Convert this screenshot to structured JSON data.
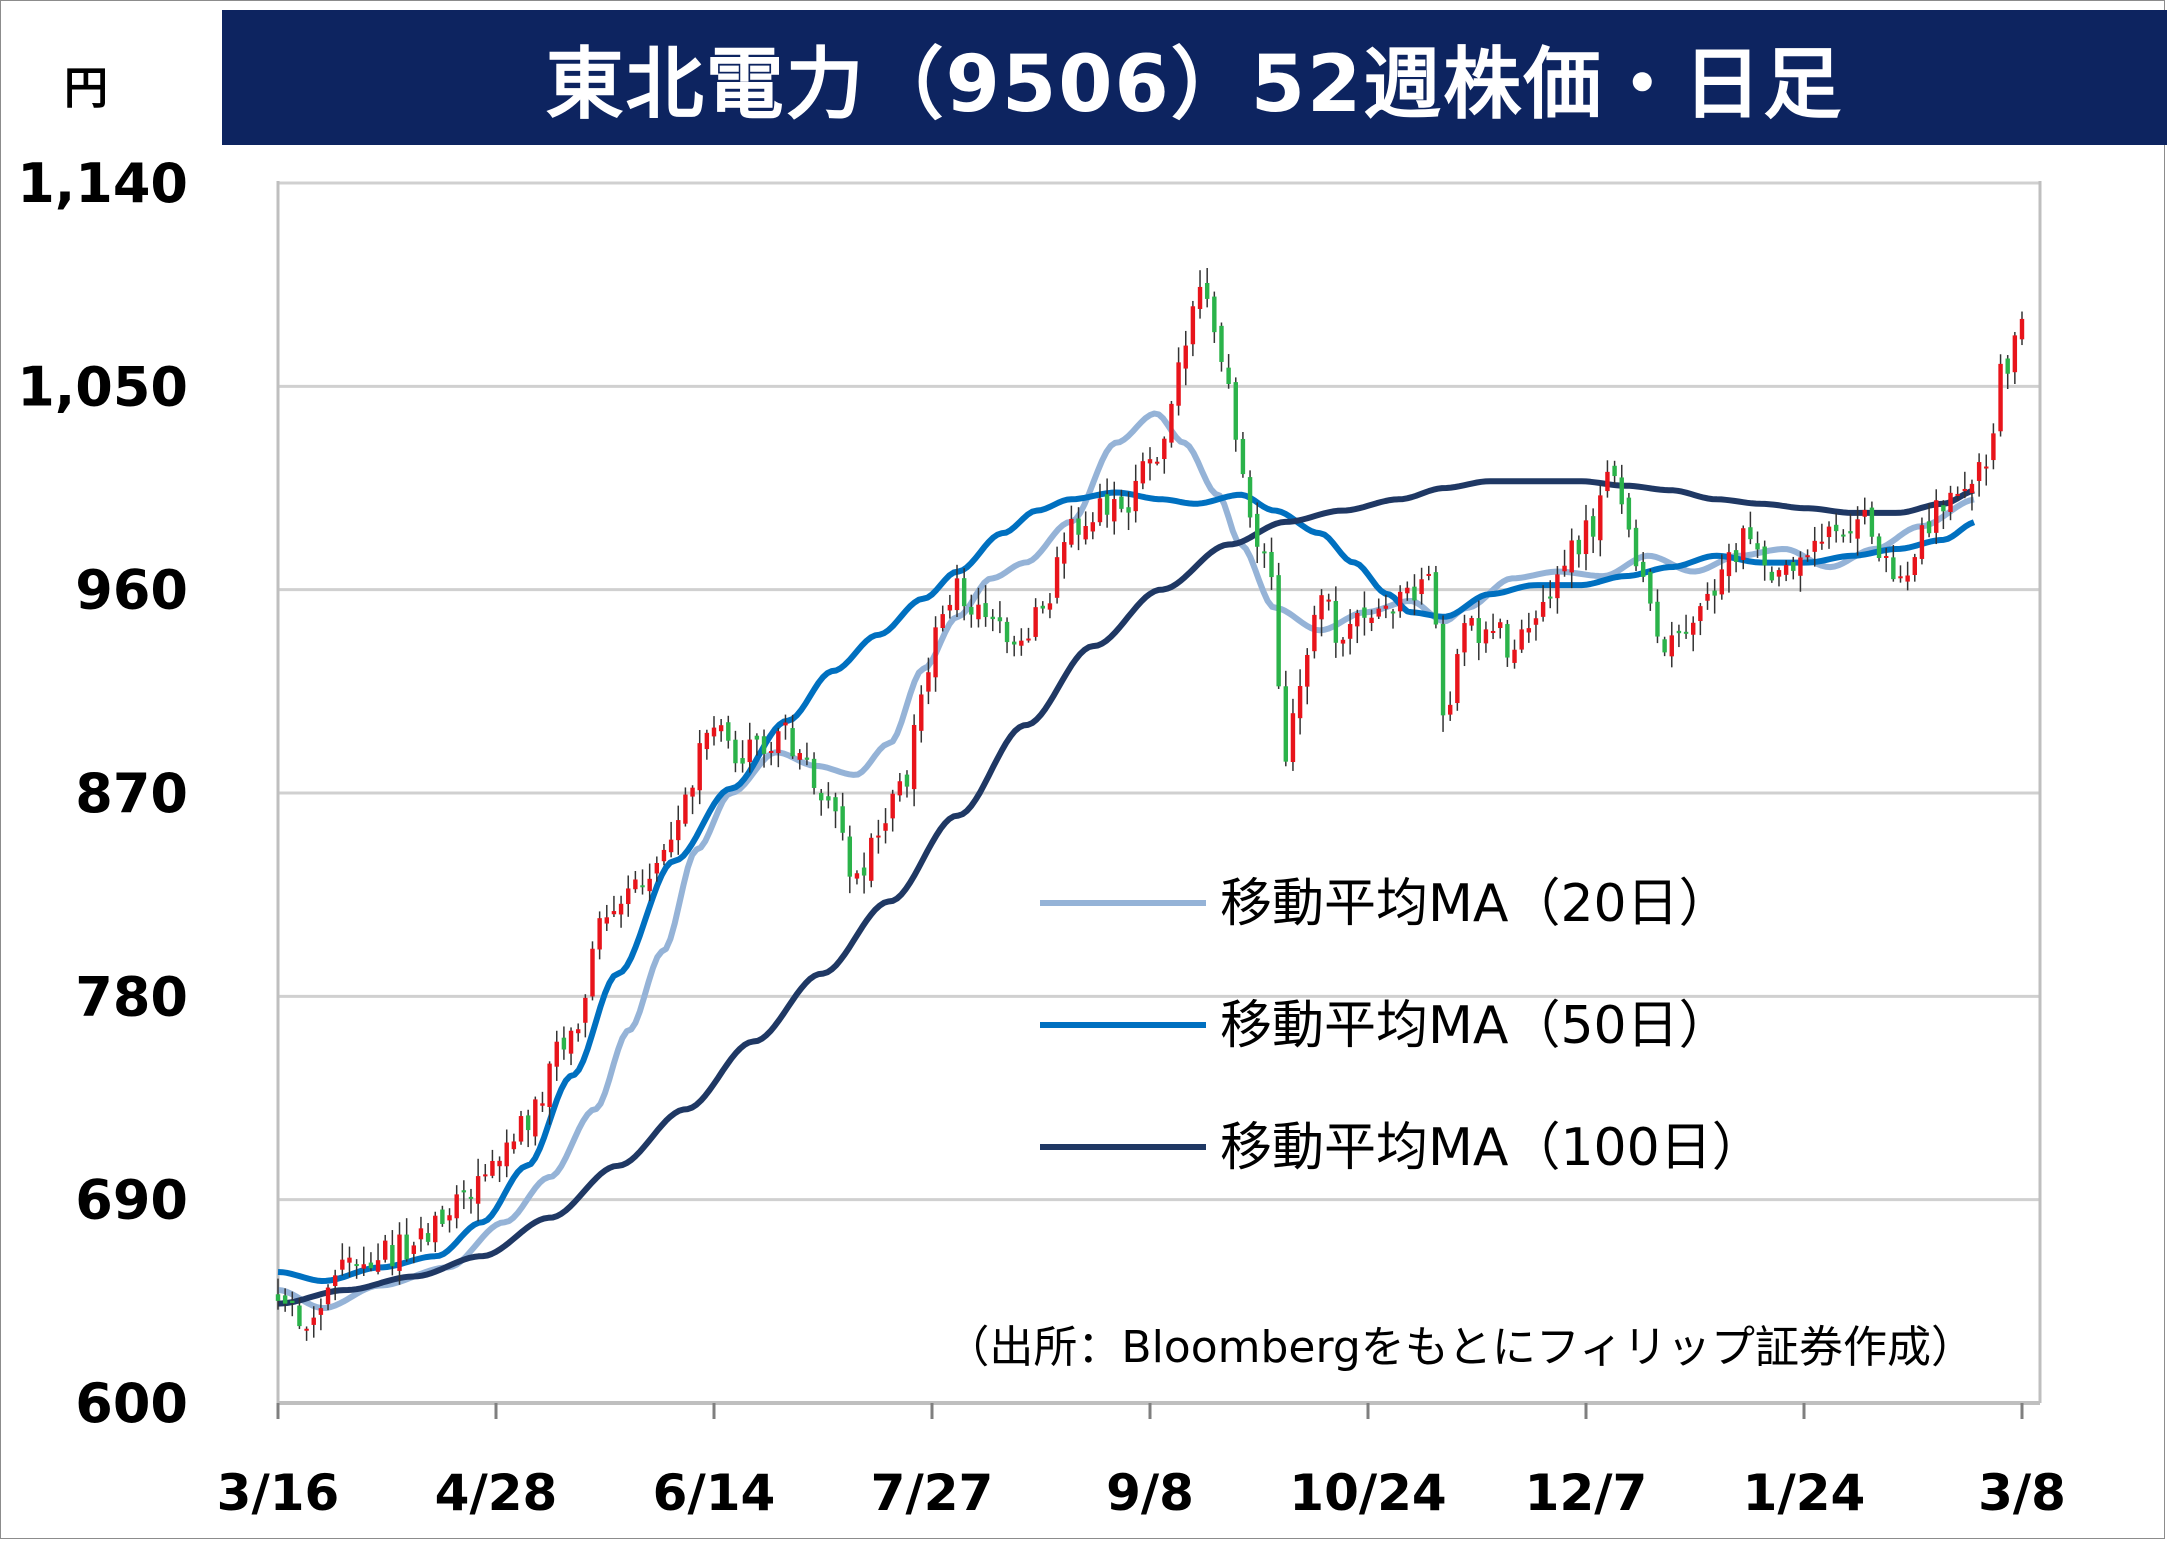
{
  "title": "東北電力（9506）52週株価・日足",
  "unit": "円",
  "source": "（出所：Bloombergをもとにフィリップ証券作成）",
  "colors": {
    "title_bg": "#0d2460",
    "up": "#e8141b",
    "down": "#2bb34a",
    "ma20": "#95b3d7",
    "ma50": "#0070c0",
    "ma100": "#1f3864",
    "grid": "#d0d0d0"
  },
  "chart_data": {
    "type": "candlestick",
    "ylim": [
      600,
      1140
    ],
    "yticks": [
      "1,140",
      "1,050",
      "960",
      "870",
      "780",
      "690",
      "600"
    ],
    "ytick_values": [
      1140,
      1050,
      960,
      870,
      780,
      690,
      600
    ],
    "xticks": [
      "3/16",
      "4/28",
      "6/14",
      "7/27",
      "9/8",
      "10/24",
      "12/7",
      "1/24",
      "3/8"
    ],
    "n_days": 245,
    "close_anchors": [
      [
        0,
        648
      ],
      [
        6,
        632
      ],
      [
        12,
        660
      ],
      [
        22,
        668
      ],
      [
        28,
        678
      ],
      [
        35,
        695
      ],
      [
        42,
        718
      ],
      [
        45,
        730
      ],
      [
        50,
        758
      ],
      [
        54,
        772
      ],
      [
        57,
        820
      ],
      [
        62,
        828
      ],
      [
        67,
        835
      ],
      [
        72,
        870
      ],
      [
        76,
        900
      ],
      [
        80,
        890
      ],
      [
        85,
        888
      ],
      [
        90,
        895
      ],
      [
        94,
        880
      ],
      [
        98,
        865
      ],
      [
        102,
        830
      ],
      [
        106,
        850
      ],
      [
        110,
        872
      ],
      [
        114,
        912
      ],
      [
        117,
        945
      ],
      [
        120,
        960
      ],
      [
        124,
        950
      ],
      [
        127,
        945
      ],
      [
        130,
        938
      ],
      [
        135,
        950
      ],
      [
        140,
        985
      ],
      [
        145,
        998
      ],
      [
        150,
        1000
      ],
      [
        155,
        1020
      ],
      [
        160,
        1060
      ],
      [
        163,
        1100
      ],
      [
        166,
        1065
      ],
      [
        170,
        1020
      ],
      [
        172,
        990
      ],
      [
        175,
        968
      ],
      [
        178,
        880
      ],
      [
        180,
        920
      ],
      [
        184,
        955
      ],
      [
        188,
        940
      ],
      [
        192,
        945
      ],
      [
        196,
        948
      ],
      [
        200,
        960
      ],
      [
        203,
        975
      ],
      [
        206,
        910
      ],
      [
        210,
        940
      ],
      [
        214,
        945
      ],
      [
        218,
        935
      ],
      [
        222,
        945
      ],
      [
        226,
        962
      ],
      [
        229,
        980
      ],
      [
        232,
        990
      ],
      [
        236,
        1010
      ],
      [
        239,
        980
      ],
      [
        242,
        960
      ],
      [
        245,
        935
      ],
      [
        248,
        942
      ],
      [
        252,
        955
      ],
      [
        256,
        975
      ],
      [
        260,
        985
      ],
      [
        264,
        970
      ],
      [
        268,
        975
      ],
      [
        272,
        978
      ],
      [
        276,
        985
      ],
      [
        280,
        992
      ],
      [
        284,
        975
      ],
      [
        286,
        960
      ],
      [
        289,
        978
      ],
      [
        292,
        992
      ],
      [
        296,
        998
      ],
      [
        299,
        1005
      ],
      [
        302,
        1020
      ],
      [
        305,
        1060
      ],
      [
        308,
        1085
      ]
    ],
    "ma20_anchors": [
      [
        0,
        650
      ],
      [
        8,
        642
      ],
      [
        18,
        652
      ],
      [
        30,
        660
      ],
      [
        40,
        680
      ],
      [
        48,
        700
      ],
      [
        56,
        730
      ],
      [
        62,
        765
      ],
      [
        68,
        800
      ],
      [
        74,
        845
      ],
      [
        80,
        870
      ],
      [
        88,
        888
      ],
      [
        95,
        882
      ],
      [
        102,
        878
      ],
      [
        108,
        892
      ],
      [
        114,
        925
      ],
      [
        120,
        948
      ],
      [
        126,
        965
      ],
      [
        132,
        972
      ],
      [
        140,
        990
      ],
      [
        148,
        1025
      ],
      [
        155,
        1038
      ],
      [
        160,
        1025
      ],
      [
        166,
        1002
      ],
      [
        170,
        980
      ],
      [
        176,
        952
      ],
      [
        184,
        942
      ],
      [
        192,
        950
      ],
      [
        200,
        955
      ],
      [
        206,
        946
      ],
      [
        210,
        952
      ],
      [
        218,
        965
      ],
      [
        226,
        968
      ],
      [
        234,
        966
      ],
      [
        242,
        975
      ],
      [
        250,
        968
      ],
      [
        258,
        975
      ],
      [
        266,
        978
      ],
      [
        274,
        970
      ],
      [
        282,
        978
      ],
      [
        290,
        988
      ],
      [
        300,
        1000
      ]
    ],
    "ma50_anchors": [
      [
        0,
        658
      ],
      [
        8,
        654
      ],
      [
        18,
        660
      ],
      [
        28,
        665
      ],
      [
        36,
        680
      ],
      [
        44,
        705
      ],
      [
        52,
        745
      ],
      [
        60,
        790
      ],
      [
        70,
        840
      ],
      [
        80,
        872
      ],
      [
        90,
        902
      ],
      [
        98,
        924
      ],
      [
        106,
        940
      ],
      [
        114,
        956
      ],
      [
        120,
        968
      ],
      [
        128,
        985
      ],
      [
        134,
        995
      ],
      [
        140,
        1000
      ],
      [
        148,
        1003
      ],
      [
        156,
        1000
      ],
      [
        162,
        998
      ],
      [
        170,
        1002
      ],
      [
        176,
        995
      ],
      [
        184,
        985
      ],
      [
        190,
        972
      ],
      [
        196,
        958
      ],
      [
        200,
        950
      ],
      [
        206,
        948
      ],
      [
        214,
        958
      ],
      [
        222,
        962
      ],
      [
        230,
        962
      ],
      [
        238,
        966
      ],
      [
        246,
        970
      ],
      [
        254,
        975
      ],
      [
        262,
        972
      ],
      [
        270,
        972
      ],
      [
        278,
        975
      ],
      [
        286,
        978
      ],
      [
        294,
        982
      ],
      [
        300,
        990
      ]
    ],
    "ma100_anchors": [
      [
        0,
        644
      ],
      [
        12,
        650
      ],
      [
        24,
        656
      ],
      [
        36,
        665
      ],
      [
        48,
        682
      ],
      [
        60,
        705
      ],
      [
        72,
        730
      ],
      [
        84,
        760
      ],
      [
        96,
        790
      ],
      [
        108,
        822
      ],
      [
        120,
        860
      ],
      [
        132,
        900
      ],
      [
        144,
        935
      ],
      [
        156,
        960
      ],
      [
        168,
        980
      ],
      [
        178,
        990
      ],
      [
        188,
        995
      ],
      [
        198,
        1000
      ],
      [
        206,
        1005
      ],
      [
        214,
        1008
      ],
      [
        222,
        1008
      ],
      [
        230,
        1008
      ],
      [
        238,
        1006
      ],
      [
        246,
        1004
      ],
      [
        254,
        1000
      ],
      [
        262,
        998
      ],
      [
        270,
        996
      ],
      [
        278,
        994
      ],
      [
        286,
        994
      ],
      [
        294,
        998
      ],
      [
        300,
        1004
      ]
    ],
    "legend": [
      {
        "label": "移動平均MA（20日）",
        "color_key": "ma20"
      },
      {
        "label": "移動平均MA（50日）",
        "color_key": "ma50"
      },
      {
        "label": "移動平均MA（100日）",
        "color_key": "ma100"
      }
    ]
  }
}
